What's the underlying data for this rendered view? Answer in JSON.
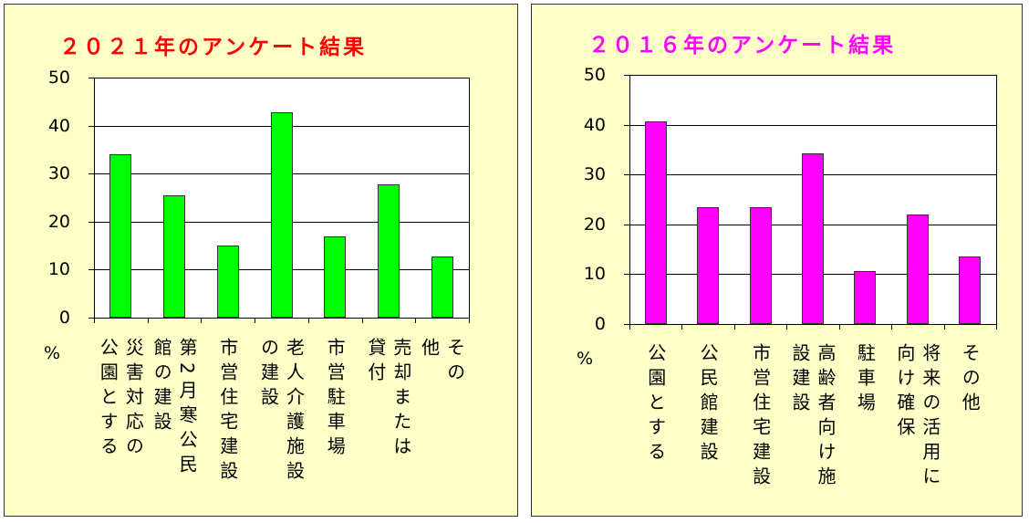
{
  "chart_data": [
    {
      "type": "bar",
      "title": "２０２１年のアンケート結果",
      "y_label": "%",
      "color": "#00ff00",
      "grid": true,
      "categories": [
        "災害対応の公園とする",
        "第2月寒公民館の建設",
        "市営住宅建設",
        "老人介護施設の建設",
        "市営駐車場",
        "売却または貸付",
        "その他"
      ],
      "values": [
        34,
        25.5,
        15,
        42.8,
        17,
        27.8,
        12.8
      ],
      "ylim": [
        0,
        50
      ],
      "yticks": [
        0,
        10,
        20,
        30,
        40,
        50
      ]
    },
    {
      "type": "bar",
      "title": "２０１６年のアンケート結果",
      "y_label": "%",
      "color": "#ff00ff",
      "grid": true,
      "categories": [
        "公園とする",
        "公民館建設",
        "市営住宅建設",
        "高齢者向け施設建設",
        "駐車場",
        "将来の活用に向け確保",
        "その他"
      ],
      "values": [
        40.6,
        23.5,
        23.5,
        34.2,
        10.6,
        22,
        13.5
      ],
      "ylim": [
        0,
        50
      ],
      "yticks": [
        0,
        10,
        20,
        30,
        40,
        50
      ]
    }
  ]
}
